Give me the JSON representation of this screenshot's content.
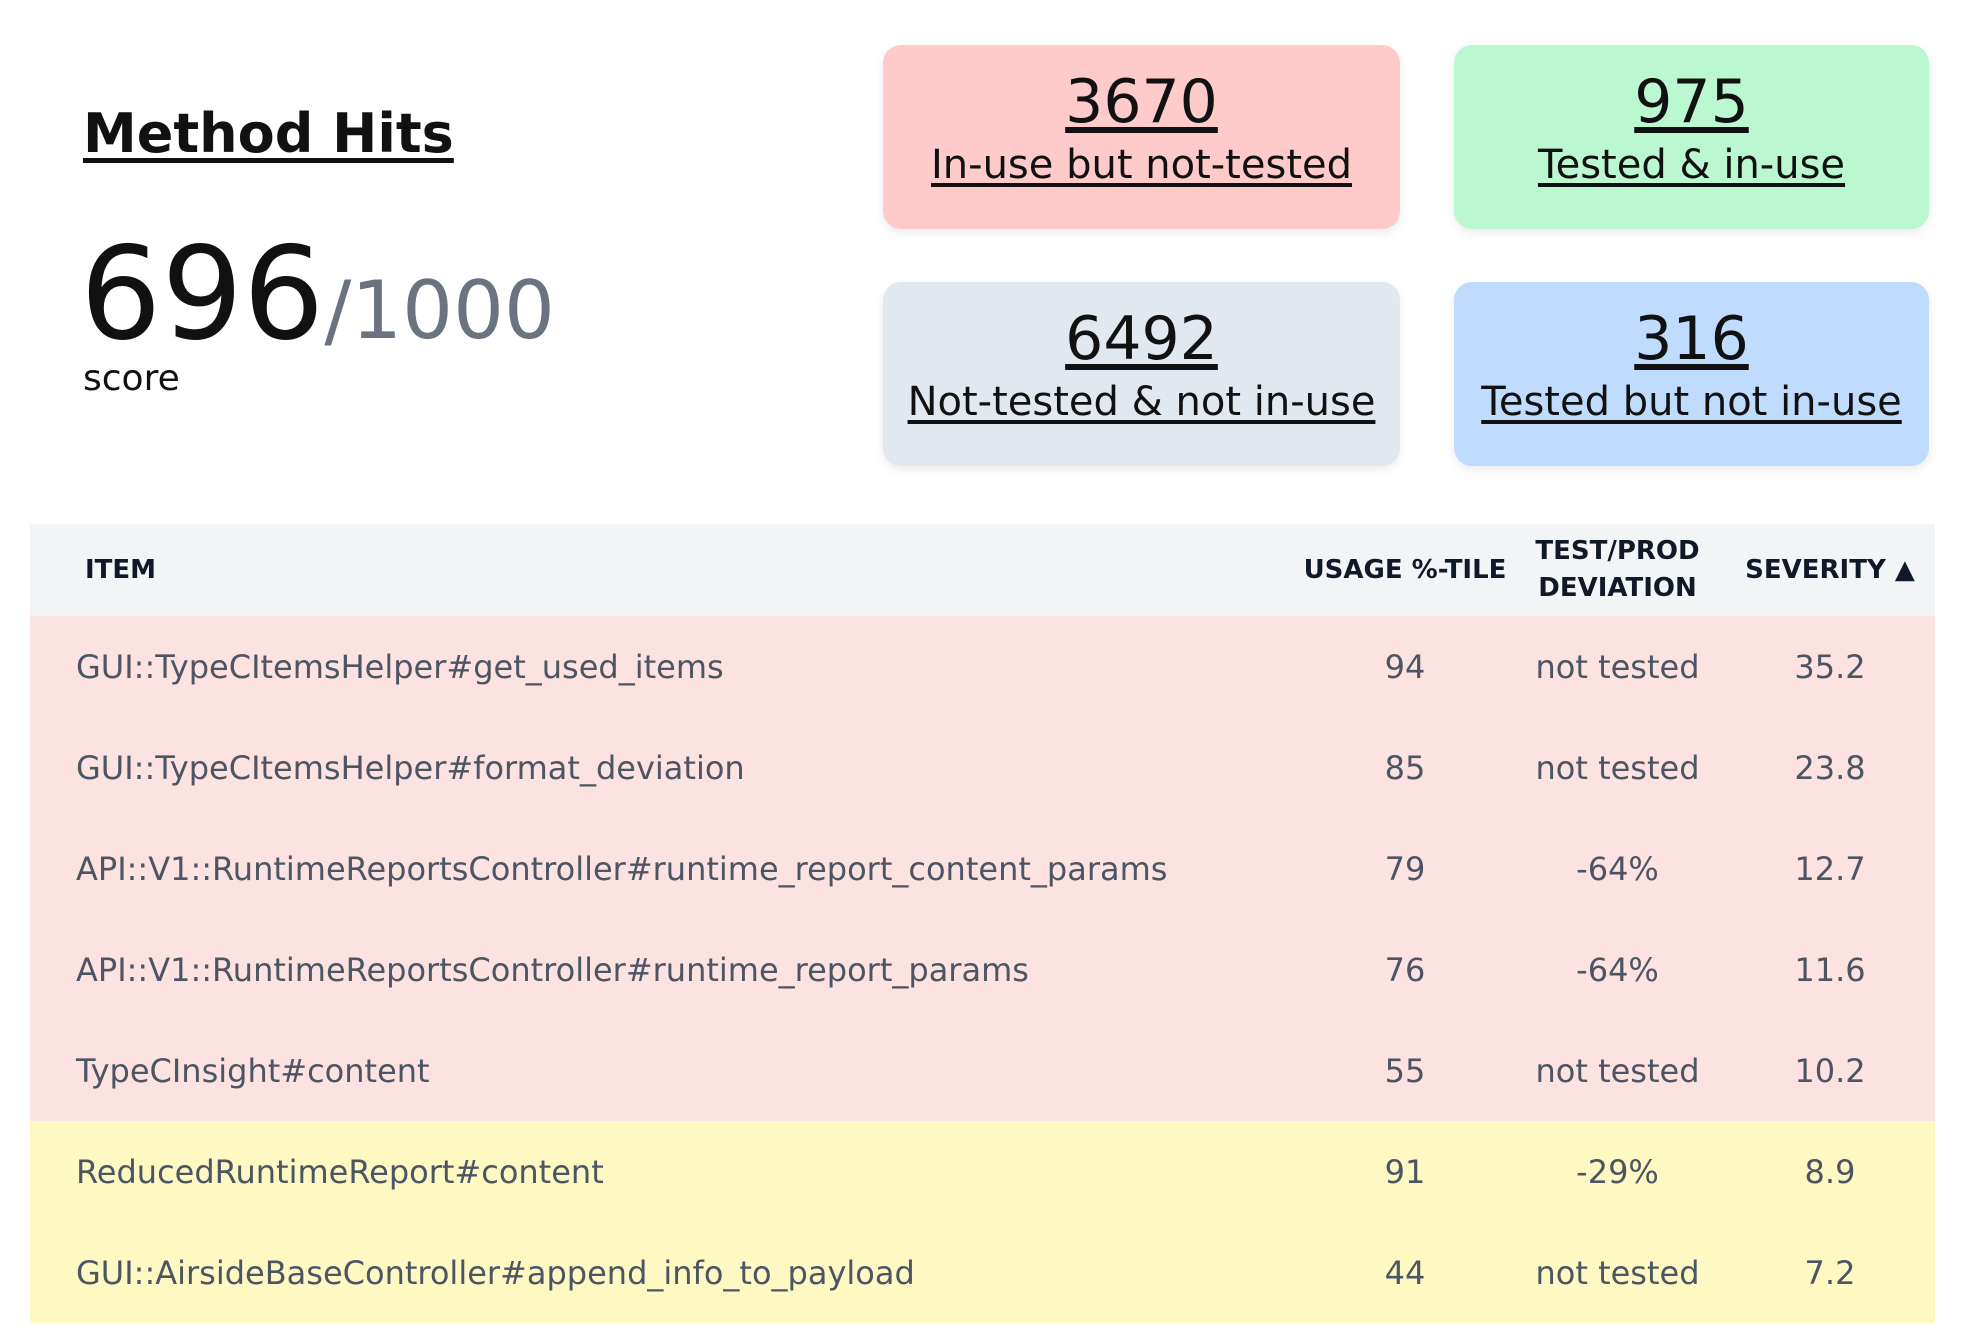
{
  "header": {
    "title": "Method Hits",
    "score": "696",
    "score_max": "/1000",
    "score_label": "score"
  },
  "cards": [
    {
      "value": "3670",
      "label": "In-use but not-tested"
    },
    {
      "value": "975",
      "label": "Tested & in-use"
    },
    {
      "value": "6492",
      "label": "Not-tested & not in-use"
    },
    {
      "value": "316",
      "label": "Tested but not in-use"
    }
  ],
  "table": {
    "columns": [
      "ITEM",
      "USAGE %-TILE",
      "TEST/PROD DEVIATION",
      "SEVERITY ▲"
    ],
    "rows": [
      [
        "GUI::TypeCItemsHelper#get_used_items",
        "94",
        "not tested",
        "35.2"
      ],
      [
        "GUI::TypeCItemsHelper#format_deviation",
        "85",
        "not tested",
        "23.8"
      ],
      [
        "API::V1::RuntimeReportsController#runtime_report_content_params",
        "79",
        "-64%",
        "12.7"
      ],
      [
        "API::V1::RuntimeReportsController#runtime_report_params",
        "76",
        "-64%",
        "11.6"
      ],
      [
        "TypeCInsight#content",
        "55",
        "not tested",
        "10.2"
      ],
      [
        "ReducedRuntimeReport#content",
        "91",
        "-29%",
        "8.9"
      ],
      [
        "GUI::AirsideBaseController#append_info_to_payload",
        "44",
        "not tested",
        "7.2"
      ]
    ]
  }
}
